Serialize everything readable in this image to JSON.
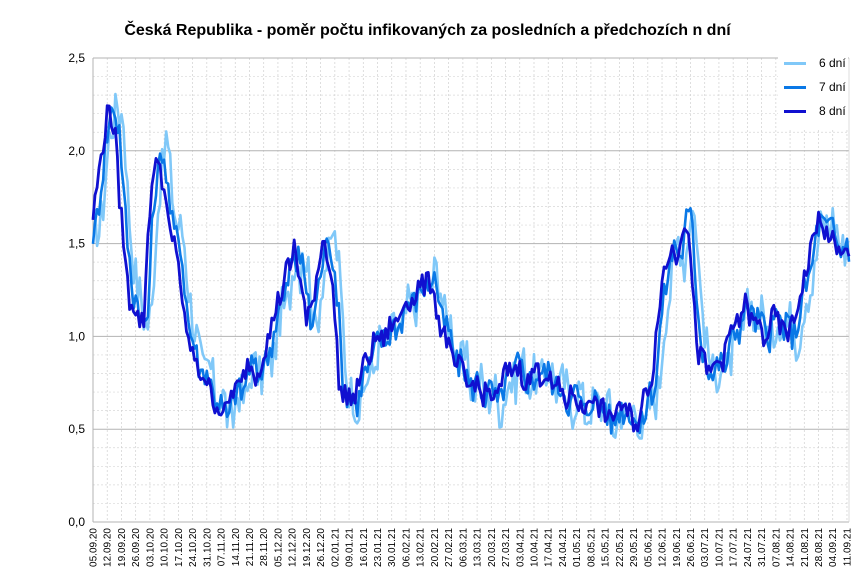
{
  "chart_data": {
    "type": "line",
    "title": "Česká Republika - poměr počtu infikovaných za posledních a předchozích n dní",
    "xlabel": "",
    "ylabel": "",
    "ylim": [
      0,
      2.5
    ],
    "yticks": [
      "0,0",
      "0,5",
      "1,0",
      "1,5",
      "2,0",
      "2,5"
    ],
    "grid": true,
    "legend_position": "top-right",
    "x_tick_labels": [
      "05.09.20",
      "12.09.20",
      "19.09.20",
      "26.09.20",
      "03.10.20",
      "10.10.20",
      "17.10.20",
      "24.10.20",
      "31.10.20",
      "07.11.20",
      "14.11.20",
      "21.11.20",
      "28.11.20",
      "05.12.20",
      "12.12.20",
      "19.12.20",
      "26.12.20",
      "02.01.21",
      "09.01.21",
      "16.01.21",
      "23.01.21",
      "30.01.21",
      "06.02.21",
      "13.02.21",
      "20.02.21",
      "27.02.21",
      "06.03.21",
      "13.03.21",
      "20.03.21",
      "27.03.21",
      "03.04.21",
      "10.04.21",
      "17.04.21",
      "24.04.21",
      "01.05.21",
      "08.05.21",
      "15.05.21",
      "22.05.21",
      "29.05.21",
      "05.06.21",
      "12.06.21",
      "19.06.21",
      "26.06.21",
      "03.07.21",
      "10.07.21",
      "17.07.21",
      "24.07.21",
      "31.07.21",
      "07.08.21",
      "14.08.21",
      "21.08.21",
      "28.08.21",
      "04.09.21",
      "11.09.21"
    ],
    "series": [
      {
        "name": "6 dní",
        "color": "#80c8f8",
        "width": 2.6,
        "offset": -3,
        "amp": 1.35,
        "noise": 0.12
      },
      {
        "name": "7 dní",
        "color": "#0a78e6",
        "width": 2.6,
        "offset": -1,
        "amp": 1.25,
        "noise": 0.08
      },
      {
        "name": "8 dní",
        "color": "#1010d0",
        "width": 2.8,
        "offset": 1,
        "amp": 1.15,
        "noise": 0.06
      }
    ],
    "trend_days": [
      0,
      3,
      5,
      7,
      9,
      12,
      14,
      16,
      19,
      21,
      23,
      26,
      28,
      30,
      33,
      35,
      38,
      40,
      42,
      45,
      47,
      50,
      52,
      54,
      57,
      60,
      63,
      66,
      68,
      70,
      73,
      75,
      78,
      81,
      84,
      87,
      90,
      93,
      96,
      99,
      100,
      103,
      106,
      109,
      112,
      115,
      118,
      120,
      122,
      124,
      127,
      130,
      133,
      136,
      139,
      142,
      145,
      148,
      151,
      154,
      156,
      159,
      162,
      165,
      168,
      171,
      174,
      177,
      180,
      183,
      186,
      189,
      192,
      195,
      198,
      201,
      204,
      207,
      210,
      213,
      216,
      219,
      222,
      225,
      228,
      231,
      234,
      237,
      240,
      243,
      246,
      249,
      252,
      255,
      258,
      261,
      264,
      267,
      270,
      273,
      276,
      279,
      282,
      285,
      288,
      291,
      294,
      296,
      299,
      302,
      305,
      308,
      311,
      313,
      316,
      319,
      322,
      325,
      328,
      331,
      334,
      337,
      340,
      343,
      346,
      349,
      352,
      355,
      358,
      361,
      364,
      367,
      370,
      373,
      376
    ],
    "trend_values": [
      1.5,
      1.8,
      1.95,
      2.05,
      2.2,
      2.05,
      1.7,
      1.5,
      1.2,
      1.15,
      1.1,
      1.1,
      1.5,
      1.8,
      1.95,
      1.8,
      1.6,
      1.5,
      1.45,
      1.2,
      1.0,
      0.9,
      0.85,
      0.82,
      0.75,
      0.7,
      0.6,
      0.62,
      0.68,
      0.7,
      0.75,
      0.8,
      0.85,
      0.82,
      0.85,
      1.0,
      1.1,
      1.2,
      1.35,
      1.35,
      1.5,
      1.3,
      1.05,
      1.2,
      1.35,
      1.55,
      1.3,
      1.1,
      0.8,
      0.68,
      0.68,
      0.7,
      0.8,
      0.9,
      0.95,
      1.0,
      1.0,
      1.05,
      1.1,
      1.15,
      1.2,
      1.2,
      1.25,
      1.3,
      1.25,
      1.1,
      1.0,
      0.9,
      0.85,
      0.8,
      0.75,
      0.75,
      0.72,
      0.7,
      0.68,
      0.72,
      0.8,
      0.85,
      0.82,
      0.8,
      0.75,
      0.85,
      0.8,
      0.78,
      0.75,
      0.7,
      0.68,
      0.7,
      0.65,
      0.62,
      0.7,
      0.65,
      0.6,
      0.58,
      0.6,
      0.65,
      0.6,
      0.55,
      0.58,
      0.7,
      0.8,
      1.1,
      1.35,
      1.45,
      1.4,
      1.6,
      1.55,
      1.25,
      0.9,
      0.85,
      0.82,
      0.85,
      0.9,
      0.95,
      1.05,
      1.1,
      1.15,
      1.1,
      1.05,
      1.0,
      1.05,
      1.1,
      1.05,
      1.0,
      1.1,
      1.2,
      1.35,
      1.5,
      1.6,
      1.55,
      1.5,
      1.45,
      1.45,
      1.4,
      1.45
    ]
  }
}
